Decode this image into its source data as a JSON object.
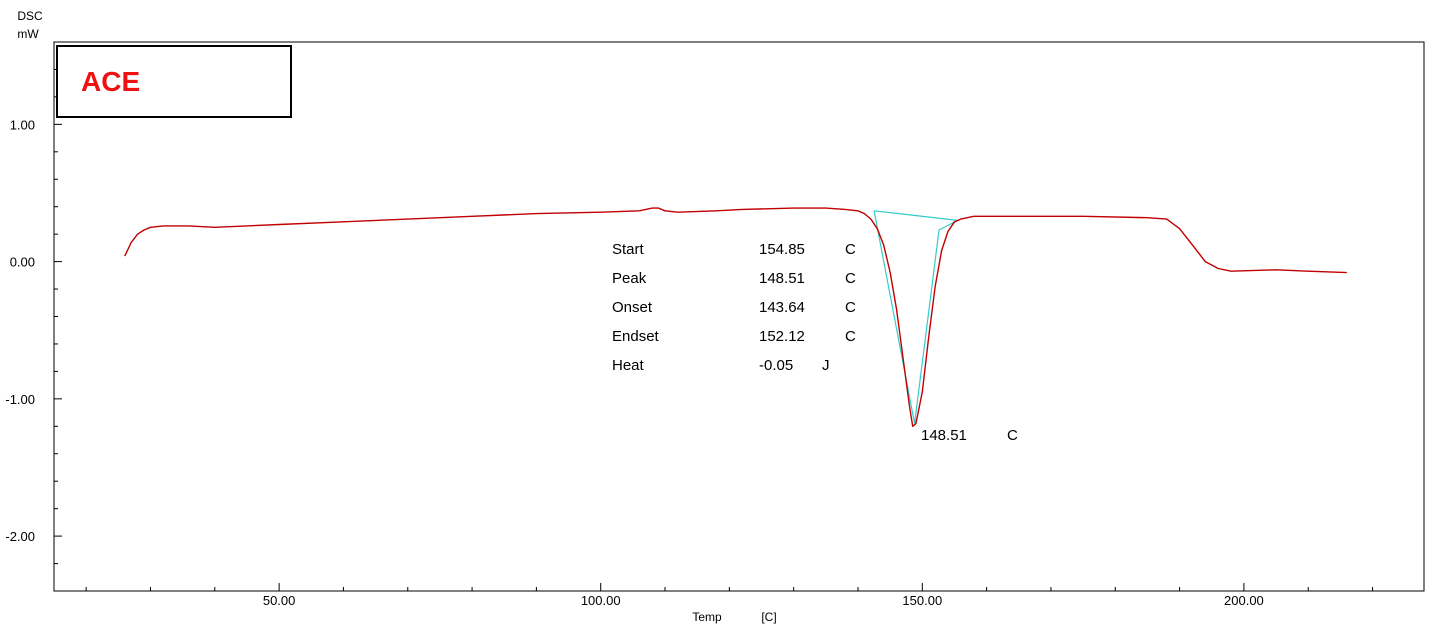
{
  "chart_data": {
    "type": "line",
    "ylabel_top": "DSC",
    "ylabel_unit": "mW",
    "xlabel": "Temp",
    "xlabel_unit": "[C]",
    "xlim": [
      15,
      228
    ],
    "ylim": [
      -2.4,
      1.6
    ],
    "x_ticks": [
      {
        "value": 50,
        "label": "50.00"
      },
      {
        "value": 100,
        "label": "100.00"
      },
      {
        "value": 150,
        "label": "150.00"
      },
      {
        "value": 200,
        "label": "200.00"
      }
    ],
    "y_ticks": [
      {
        "value": 1,
        "label": "1.00"
      },
      {
        "value": 0,
        "label": "0.00"
      },
      {
        "value": -1,
        "label": "-1.00"
      },
      {
        "value": -2,
        "label": "-2.00"
      }
    ],
    "sample_label": "ACE",
    "sample_label_color": "#ee1111",
    "curve_color": "#c00000",
    "baseline_color": "#33cccc",
    "series": [
      {
        "values": [
          [
            26,
            0.04
          ],
          [
            27,
            0.14
          ],
          [
            28,
            0.2
          ],
          [
            29,
            0.23
          ],
          [
            30,
            0.25
          ],
          [
            32,
            0.26
          ],
          [
            34,
            0.26
          ],
          [
            36,
            0.26
          ],
          [
            40,
            0.25
          ],
          [
            45,
            0.26
          ],
          [
            50,
            0.27
          ],
          [
            60,
            0.29
          ],
          [
            70,
            0.31
          ],
          [
            80,
            0.33
          ],
          [
            90,
            0.35
          ],
          [
            100,
            0.36
          ],
          [
            106,
            0.37
          ],
          [
            108,
            0.39
          ],
          [
            109,
            0.39
          ],
          [
            110,
            0.37
          ],
          [
            112,
            0.36
          ],
          [
            118,
            0.37
          ],
          [
            122,
            0.38
          ],
          [
            130,
            0.39
          ],
          [
            135,
            0.39
          ],
          [
            138,
            0.38
          ],
          [
            140,
            0.37
          ],
          [
            141,
            0.35
          ],
          [
            142,
            0.31
          ],
          [
            143,
            0.24
          ],
          [
            144,
            0.12
          ],
          [
            145,
            -0.08
          ],
          [
            146,
            -0.35
          ],
          [
            147,
            -0.7
          ],
          [
            148,
            -1.05
          ],
          [
            148.51,
            -1.2
          ],
          [
            149,
            -1.18
          ],
          [
            150,
            -0.95
          ],
          [
            151,
            -0.55
          ],
          [
            152,
            -0.18
          ],
          [
            153,
            0.08
          ],
          [
            154,
            0.22
          ],
          [
            155,
            0.29
          ],
          [
            156,
            0.31
          ],
          [
            158,
            0.33
          ],
          [
            165,
            0.33
          ],
          [
            175,
            0.33
          ],
          [
            185,
            0.32
          ],
          [
            188,
            0.31
          ],
          [
            190,
            0.24
          ],
          [
            192,
            0.12
          ],
          [
            194,
            0.0
          ],
          [
            196,
            -0.05
          ],
          [
            198,
            -0.07
          ],
          [
            205,
            -0.06
          ],
          [
            210,
            -0.07
          ],
          [
            216,
            -0.08
          ]
        ]
      }
    ],
    "baseline_line": [
      [
        142.5,
        0.37
      ],
      [
        155.5,
        0.3
      ]
    ],
    "onset_tangent": [
      [
        142.5,
        0.37
      ],
      [
        148.8,
        -1.18
      ]
    ],
    "endset_tangent": [
      [
        148.8,
        -1.18
      ],
      [
        152.6,
        0.23
      ],
      [
        155.5,
        0.3
      ]
    ],
    "results": [
      {
        "label": "Start",
        "value": "154.85",
        "unit": "C"
      },
      {
        "label": "Peak",
        "value": "148.51",
        "unit": "C"
      },
      {
        "label": "Onset",
        "value": "143.64",
        "unit": "C"
      },
      {
        "label": "Endset",
        "value": "152.12",
        "unit": "C"
      },
      {
        "label": "Heat",
        "value": "-0.05",
        "unit": "J"
      }
    ],
    "peak_annotation": {
      "value": "148.51",
      "unit": "C"
    }
  }
}
